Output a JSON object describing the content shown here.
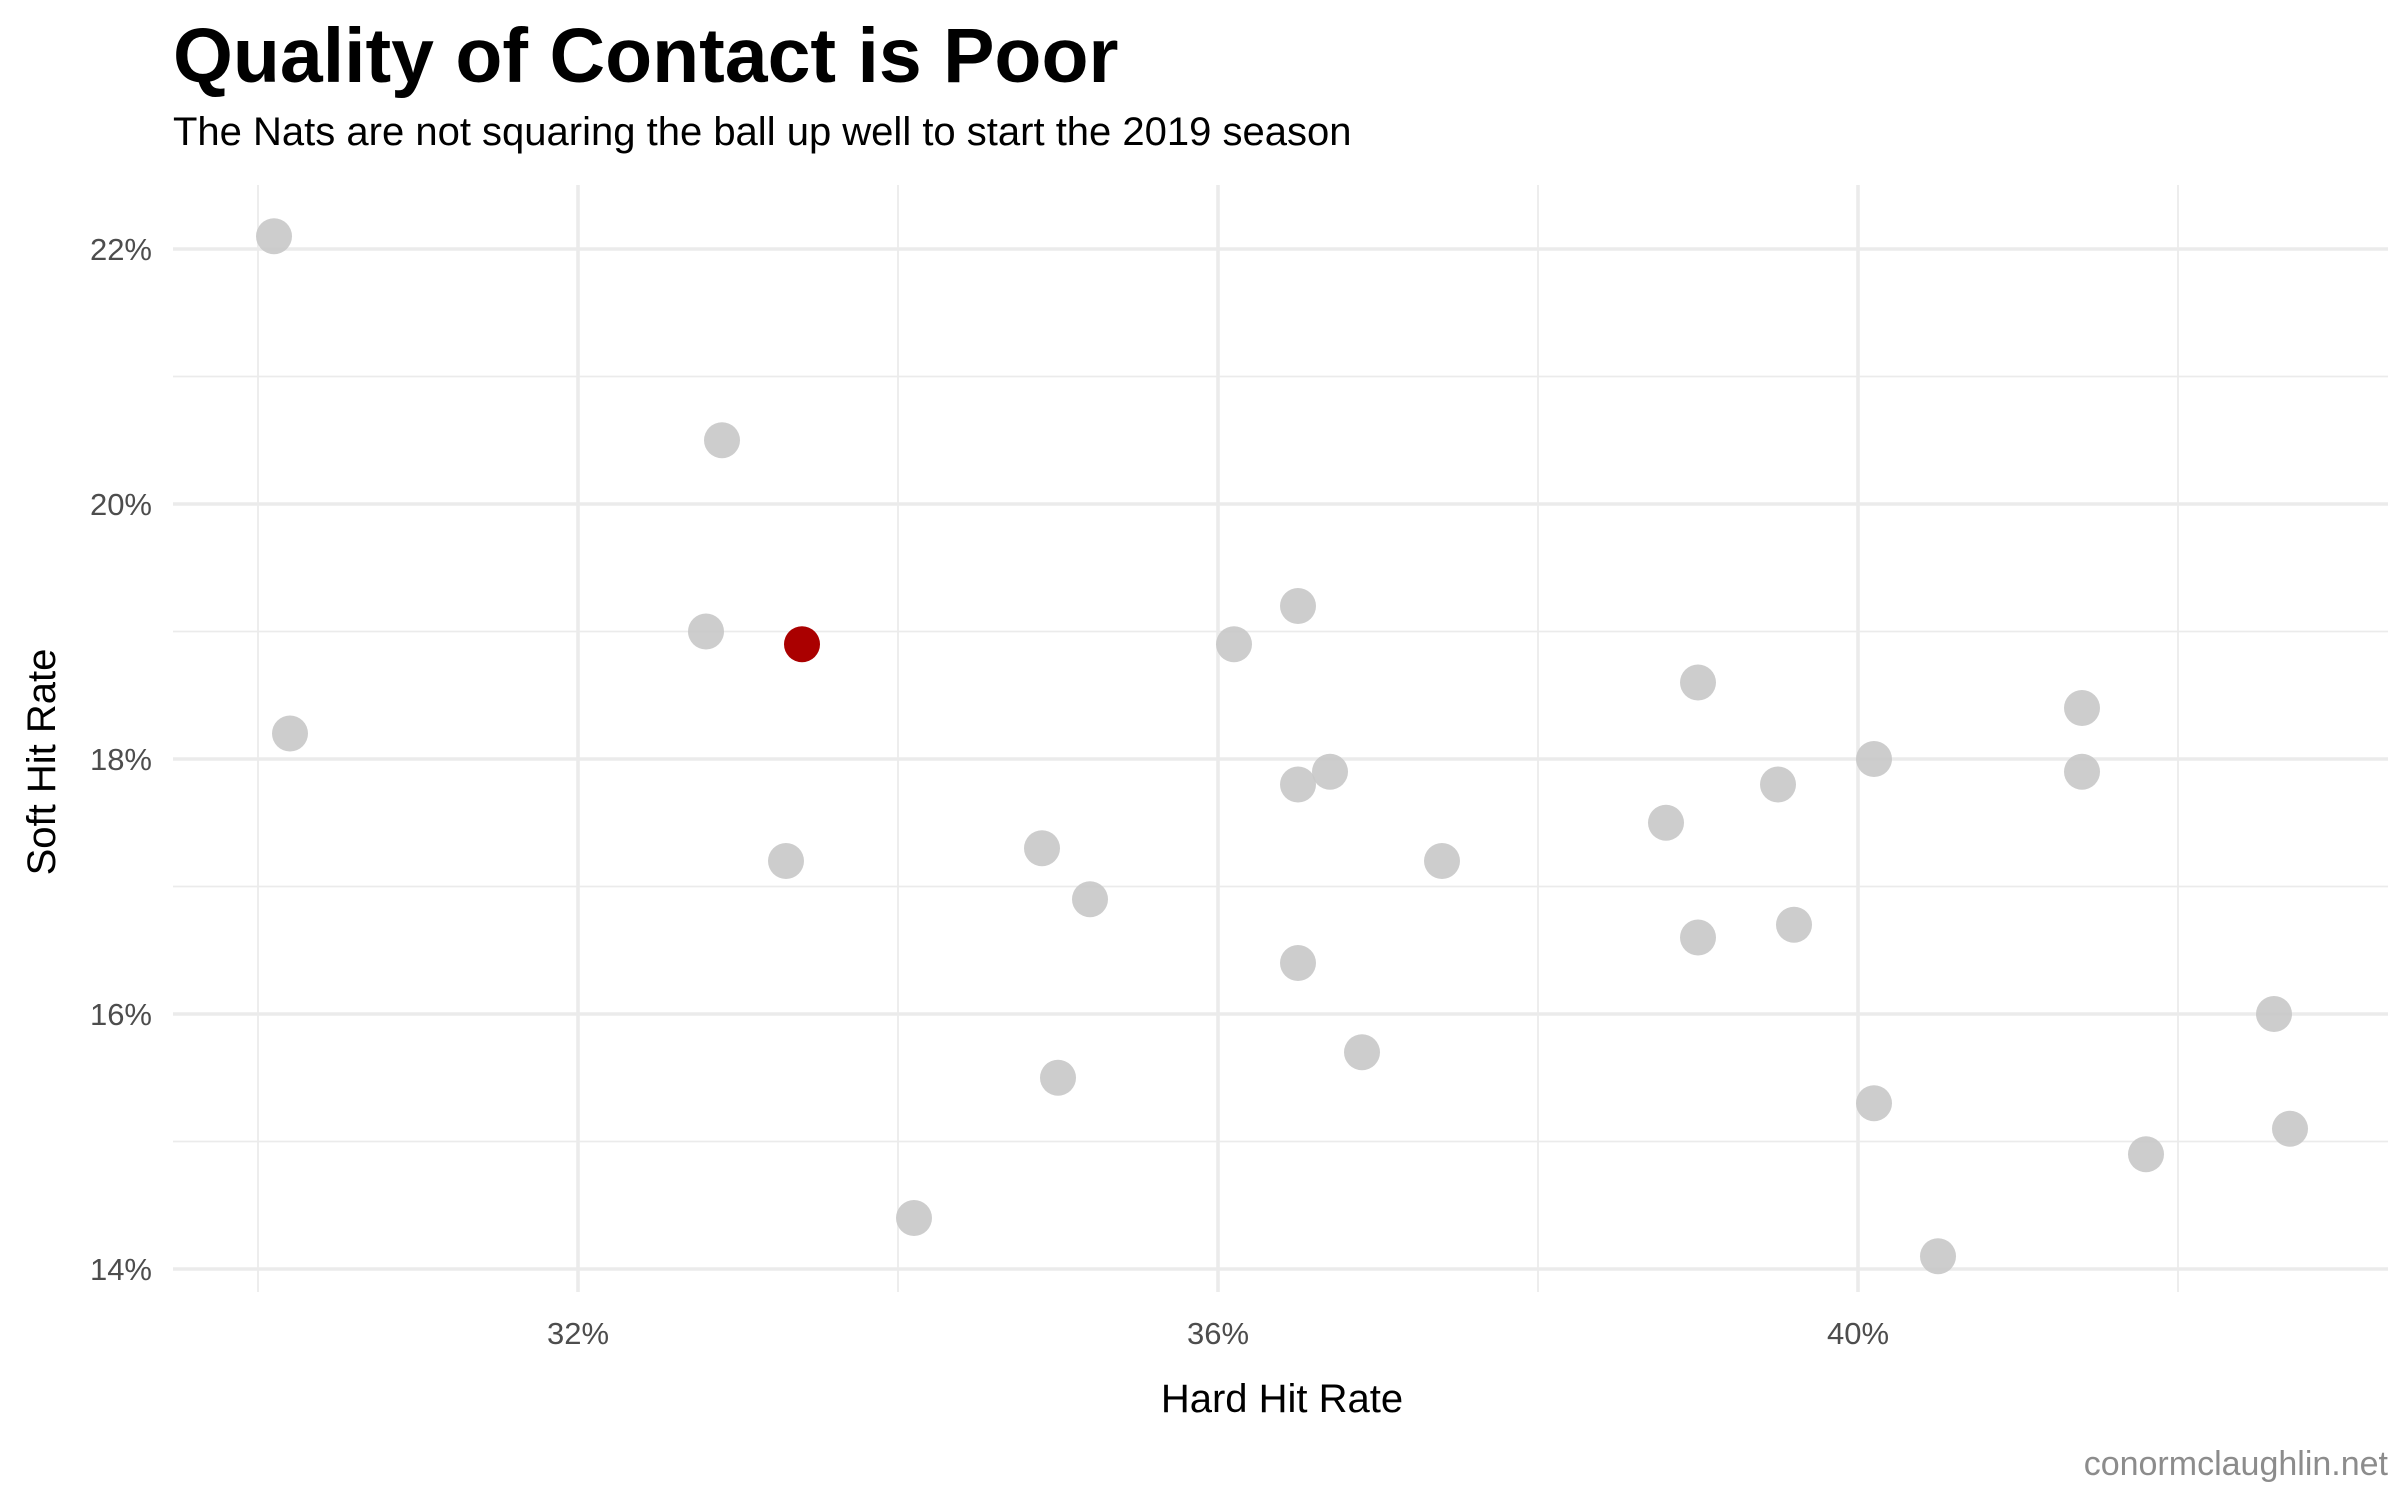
{
  "chart_data": {
    "type": "scatter",
    "title": "Quality of Contact is Poor",
    "subtitle": "The Nats are not squaring the ball up well to start the 2019 season",
    "xlabel": "Hard Hit Rate",
    "ylabel": "Soft Hit Rate",
    "caption": "conormclaughlin.net",
    "xlim": [
      29.5,
      43.5
    ],
    "ylim": [
      13.85,
      22.5
    ],
    "x_ticks": [
      32,
      36,
      40
    ],
    "x_tick_labels": [
      "32%",
      "36%",
      "40%"
    ],
    "x_minor": [
      30,
      34,
      38,
      42
    ],
    "y_ticks": [
      14,
      16,
      18,
      20,
      22
    ],
    "y_tick_labels": [
      "14%",
      "16%",
      "18%",
      "20%",
      "22%"
    ],
    "y_minor": [
      15,
      17,
      19,
      21
    ],
    "grid": true,
    "colors": {
      "highlight": "#aa0000",
      "other": "#c8c8c8",
      "grid": "#ebebeb"
    },
    "series": [
      {
        "name": "",
        "color": "#c8c8c8",
        "points": [
          [
            30.1,
            22.1
          ],
          [
            30.2,
            18.2
          ],
          [
            32.9,
            20.5
          ],
          [
            32.8,
            19.0
          ],
          [
            33.3,
            17.2
          ],
          [
            34.1,
            14.4
          ],
          [
            34.9,
            17.3
          ],
          [
            35.2,
            16.9
          ],
          [
            35.0,
            15.5
          ],
          [
            36.1,
            18.9
          ],
          [
            36.5,
            19.2
          ],
          [
            36.5,
            17.8
          ],
          [
            36.7,
            17.9
          ],
          [
            36.5,
            16.4
          ],
          [
            36.9,
            15.7
          ],
          [
            37.4,
            17.2
          ],
          [
            38.8,
            17.5
          ],
          [
            39.0,
            18.6
          ],
          [
            39.0,
            16.6
          ],
          [
            39.5,
            17.8
          ],
          [
            39.6,
            16.7
          ],
          [
            40.1,
            18.0
          ],
          [
            40.1,
            15.3
          ],
          [
            40.5,
            14.1
          ],
          [
            41.4,
            18.4
          ],
          [
            41.4,
            17.9
          ],
          [
            41.8,
            14.9
          ],
          [
            42.6,
            16.0
          ],
          [
            42.7,
            15.1
          ]
        ]
      },
      {
        "name": "",
        "color": "#aa0000",
        "points": [
          [
            33.4,
            18.9
          ]
        ]
      }
    ]
  }
}
